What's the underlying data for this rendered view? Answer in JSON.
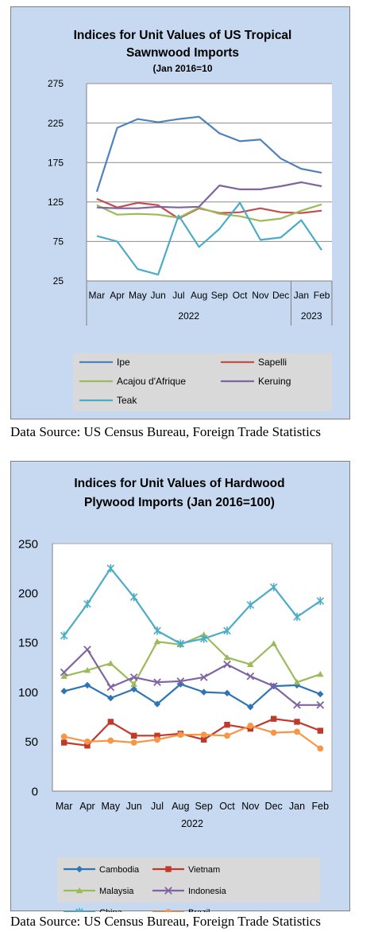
{
  "charts": [
    {
      "title_line1": "Indices for Unit Values of US Tropical",
      "title_line2": "Sawnwood Imports",
      "subtitle": "(Jan 2016=10",
      "source": "Data Source: US Census Bureau, Foreign Trade Statistics"
    },
    {
      "title_line1": "Indices for Unit Values of Hardwood",
      "title_line2": "Plywood Imports (Jan 2016=100)",
      "source": "Data Source: US Census Bureau, Foreign Trade Statistics"
    }
  ],
  "chart_data": [
    {
      "type": "line",
      "title": "Indices for Unit Values of US Tropical Sawnwood Imports",
      "subtitle": "(Jan 2016=10",
      "categories": [
        "Mar",
        "Apr",
        "May",
        "Jun",
        "Jul",
        "Aug",
        "Sep",
        "Oct",
        "Nov",
        "Dec",
        "Jan",
        "Feb"
      ],
      "year_groups": [
        {
          "label": "2022",
          "start": 0,
          "end": 9
        },
        {
          "label": "2023",
          "start": 10,
          "end": 11
        }
      ],
      "yticks": [
        25,
        75,
        125,
        175,
        225,
        275
      ],
      "ylim": [
        25,
        275
      ],
      "grid": true,
      "legend_position": "bottom",
      "markers": false,
      "series": [
        {
          "name": "Ipe",
          "color": "#4f81bd",
          "values": [
            138,
            219,
            230,
            226,
            230,
            233,
            212,
            202,
            204,
            180,
            167,
            162
          ]
        },
        {
          "name": "Sapelli",
          "color": "#c0504d",
          "values": [
            129,
            118,
            124,
            121,
            104,
            117,
            111,
            112,
            117,
            112,
            111,
            114
          ]
        },
        {
          "name": "Acajou d'Afrique",
          "color": "#9bbb59",
          "values": [
            121,
            109,
            110,
            109,
            105,
            118,
            110,
            107,
            101,
            104,
            114,
            122
          ]
        },
        {
          "name": "Keruing",
          "color": "#8064a2",
          "values": [
            118,
            117,
            117,
            119,
            118,
            119,
            146,
            141,
            141,
            145,
            150,
            145
          ]
        },
        {
          "name": "Teak",
          "color": "#4bacc6",
          "values": [
            82,
            75,
            40,
            33,
            108,
            68,
            91,
            124,
            77,
            80,
            102,
            64
          ]
        }
      ]
    },
    {
      "type": "line",
      "title": "Indices for Unit Values of Hardwood Plywood Imports (Jan 2016=100)",
      "categories": [
        "Mar",
        "Apr",
        "May",
        "Jun",
        "Jul",
        "Aug",
        "Sep",
        "Oct",
        "Nov",
        "Dec",
        "Jan",
        "Feb"
      ],
      "year_groups": [
        {
          "label": "2022",
          "start": 0,
          "end": 11
        }
      ],
      "yticks": [
        0,
        50,
        100,
        150,
        200,
        250
      ],
      "ylim": [
        0,
        250
      ],
      "grid": false,
      "legend_position": "bottom",
      "markers": true,
      "series": [
        {
          "name": "Cambodia",
          "color": "#2e75b6",
          "marker": "diamond",
          "values": [
            101,
            107,
            94,
            103,
            88,
            108,
            100,
            99,
            85,
            106,
            107,
            98
          ]
        },
        {
          "name": "Vietnam",
          "color": "#c0392b",
          "marker": "square",
          "values": [
            49,
            46,
            70,
            56,
            56,
            58,
            52,
            67,
            63,
            73,
            70,
            61
          ]
        },
        {
          "name": "Malaysia",
          "color": "#9bbb59",
          "marker": "triangle",
          "values": [
            116,
            122,
            129,
            108,
            151,
            148,
            158,
            135,
            128,
            149,
            110,
            118
          ]
        },
        {
          "name": "Indonesia",
          "color": "#8064a2",
          "marker": "x",
          "values": [
            120,
            143,
            105,
            115,
            110,
            111,
            115,
            128,
            116,
            106,
            87,
            87
          ]
        },
        {
          "name": "China",
          "color": "#4bacc6",
          "marker": "star",
          "values": [
            157,
            189,
            225,
            196,
            162,
            149,
            154,
            162,
            188,
            206,
            176,
            192
          ]
        },
        {
          "name": "Brazil",
          "color": "#f79646",
          "marker": "circle",
          "values": [
            55,
            50,
            51,
            49,
            52,
            57,
            57,
            56,
            66,
            59,
            60,
            43
          ]
        }
      ]
    }
  ]
}
